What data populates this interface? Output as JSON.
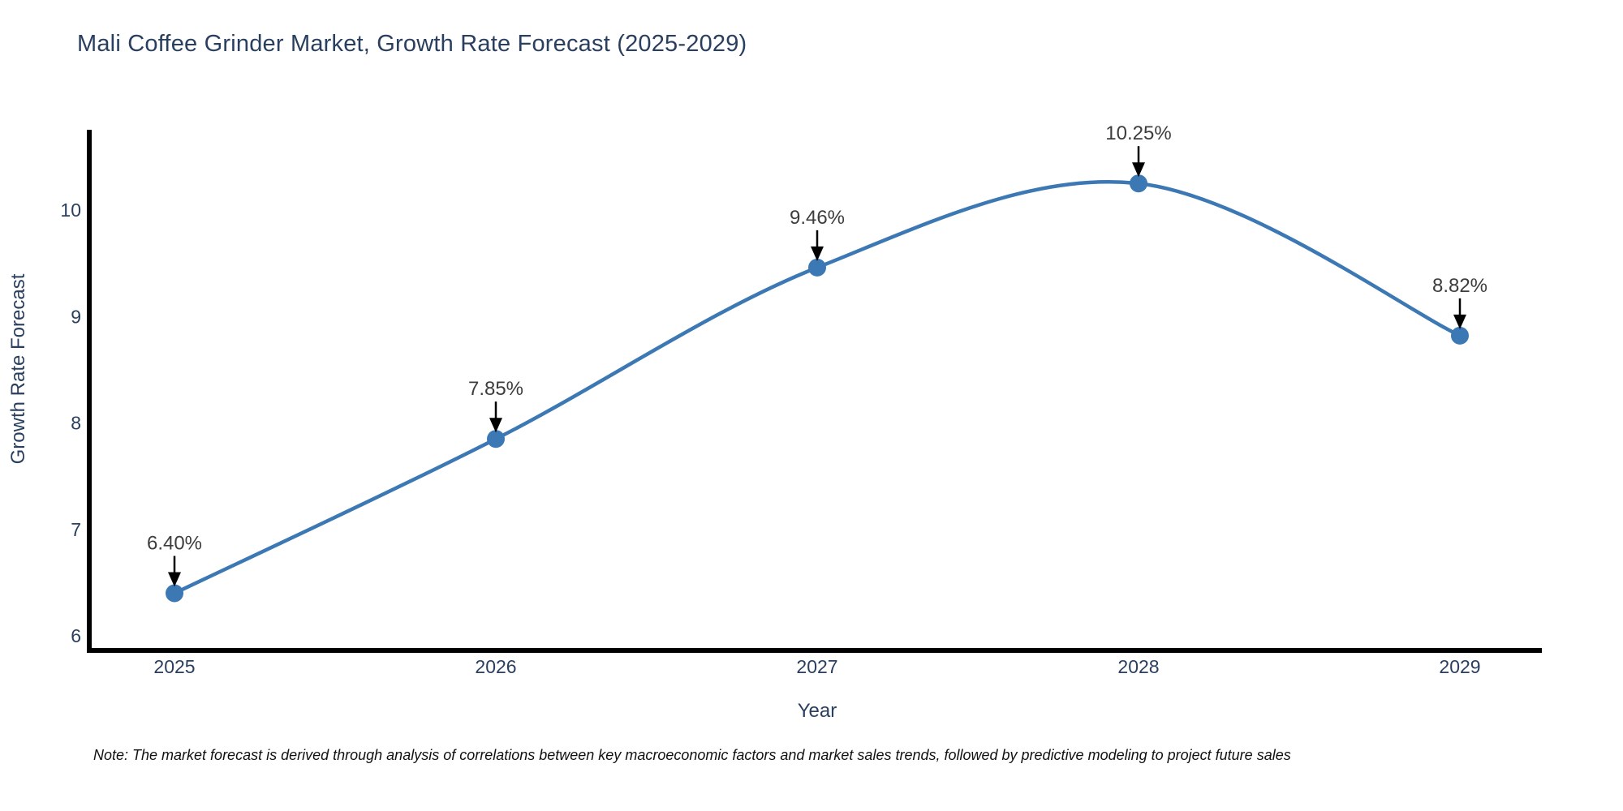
{
  "page": {
    "background": "#ffffff"
  },
  "title": {
    "text": "Mali Coffee Grinder Market, Growth Rate Forecast (2025-2029)",
    "color": "#2a3f5f"
  },
  "note": {
    "text": "Note: The market forecast is derived through analysis of correlations between key macroeconomic factors and market sales trends, followed by predictive modeling to project future sales"
  },
  "chart_data": {
    "type": "line",
    "line_shape": "spline",
    "title": "Mali Coffee Grinder Market, Growth Rate Forecast (2025-2029)",
    "categories": [
      "2025",
      "2026",
      "2027",
      "2028",
      "2029"
    ],
    "x": [
      2025,
      2026,
      2027,
      2028,
      2029
    ],
    "series": [
      {
        "name": "Growth Rate Forecast",
        "values": [
          6.4,
          7.85,
          9.46,
          10.25,
          8.82
        ]
      }
    ],
    "point_labels": [
      "6.40%",
      "7.85%",
      "9.46%",
      "10.25%",
      "8.82%"
    ],
    "xlabel": "Year",
    "ylabel": "Growth Rate Forecast",
    "yticks": [
      6,
      7,
      8,
      9,
      10
    ],
    "ylim": [
      5.9,
      10.75
    ],
    "grid": false,
    "legend_position": "none",
    "marker": "circle",
    "annotations_have_arrows": true,
    "colors": {
      "line": "#3c78b4",
      "marker": "#3c78b4",
      "annotation_text": "#3d3d3d",
      "arrow": "#000000",
      "axis_line": "#000000",
      "tick_text": "#2a3f5f",
      "axis_title_text": "#2a3f5f"
    }
  }
}
